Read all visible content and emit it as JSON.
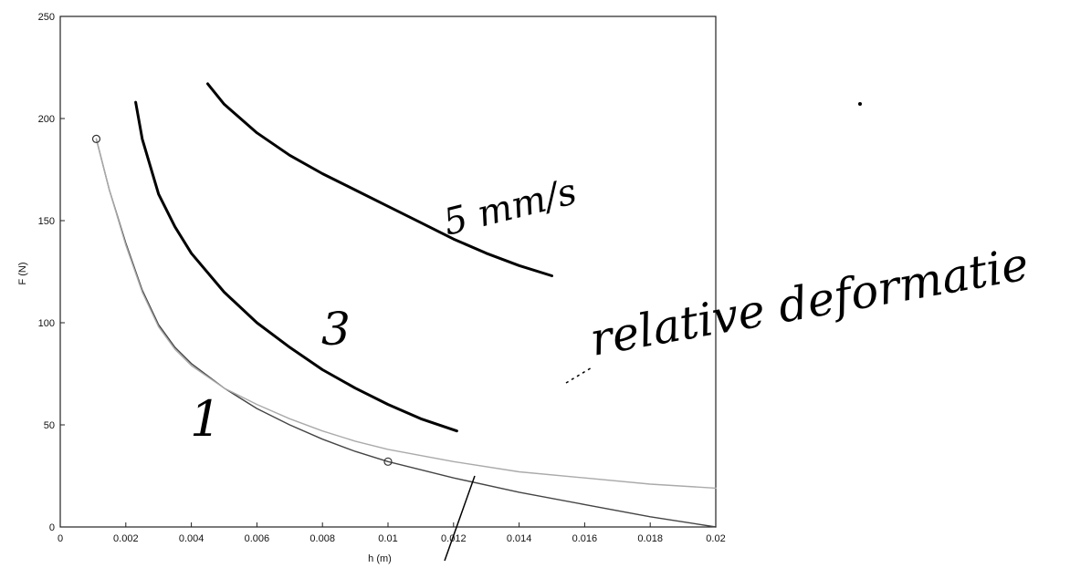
{
  "chart_data": {
    "type": "line",
    "title": "",
    "xlabel": "h (m)",
    "ylabel": "F (N)",
    "xlim": [
      0,
      0.02
    ],
    "ylim": [
      0,
      250
    ],
    "xticks": [
      "0",
      "0.002",
      "0.004",
      "0.006",
      "0.008",
      "0.01",
      "0.012",
      "0.014",
      "0.016",
      "0.018",
      "0.02"
    ],
    "yticks": [
      "0",
      "50",
      "100",
      "150",
      "200",
      "250"
    ],
    "grid": false,
    "legend": "none",
    "series": [
      {
        "name": "1",
        "color": "#444444",
        "x": [
          0.0011,
          0.0015,
          0.002,
          0.0025,
          0.003,
          0.0035,
          0.004,
          0.005,
          0.006,
          0.007,
          0.008,
          0.009,
          0.01,
          0.012,
          0.014,
          0.016,
          0.018,
          0.02
        ],
        "y": [
          190,
          165,
          139,
          116,
          99,
          88,
          80,
          68,
          58,
          50,
          43,
          37,
          32,
          24,
          17,
          11,
          5,
          0
        ]
      },
      {
        "name": "",
        "color": "#aaaaaa",
        "x": [
          0.0011,
          0.0015,
          0.002,
          0.0025,
          0.003,
          0.0035,
          0.004,
          0.005,
          0.006,
          0.007,
          0.008,
          0.009,
          0.01,
          0.012,
          0.014,
          0.016,
          0.018,
          0.02
        ],
        "y": [
          190,
          165,
          138,
          115,
          98,
          87,
          79,
          68,
          60,
          53,
          47,
          42,
          38,
          32,
          27,
          24,
          21,
          19
        ]
      },
      {
        "name": "3",
        "color": "#000000",
        "x": [
          0.0023,
          0.0025,
          0.003,
          0.0035,
          0.004,
          0.005,
          0.006,
          0.007,
          0.008,
          0.009,
          0.01,
          0.011,
          0.0121
        ],
        "y": [
          208,
          190,
          163,
          147,
          134,
          115,
          100,
          88,
          77,
          68,
          60,
          53,
          47
        ]
      },
      {
        "name": "5 mm/s",
        "color": "#000000",
        "x": [
          0.0045,
          0.005,
          0.006,
          0.007,
          0.008,
          0.009,
          0.01,
          0.011,
          0.012,
          0.013,
          0.014,
          0.015
        ],
        "y": [
          217,
          207,
          193,
          182,
          173,
          165,
          157,
          149,
          141,
          134,
          128,
          123
        ]
      }
    ],
    "annotations": [
      "relative deformatie"
    ]
  }
}
